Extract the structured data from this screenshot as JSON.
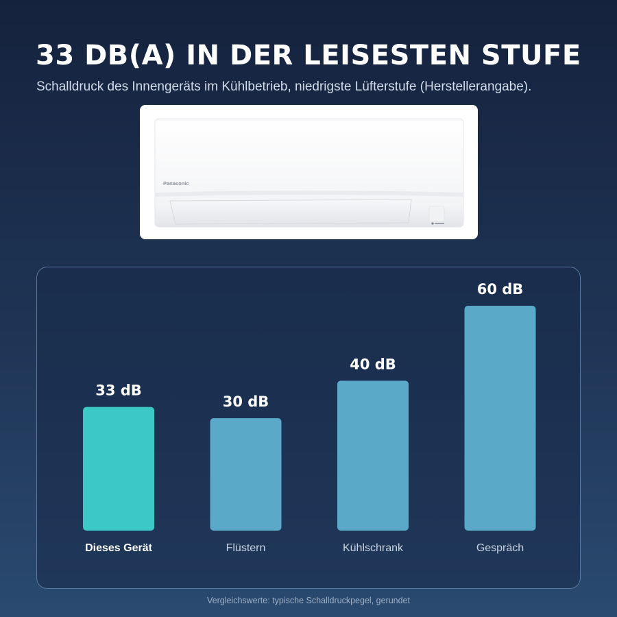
{
  "header": {
    "title": "33 DB(A) IN DER LEISESTEN STUFE",
    "subtitle": "Schalldruck des Innengeräts im Kühlbetrieb, niedrigste Lüfterstufe (Herstellerangabe)."
  },
  "product": {
    "brand_label": "Panasonic"
  },
  "chart_data": {
    "type": "bar",
    "categories": [
      "Dieses Gerät",
      "Flüstern",
      "Kühlschrank",
      "Gespräch"
    ],
    "values": [
      33,
      30,
      40,
      60
    ],
    "value_labels": [
      "33 dB",
      "30 dB",
      "40 dB",
      "60 dB"
    ],
    "highlight_index": 0,
    "colors": {
      "highlight": "#3cc8c4",
      "default": "#5aa9c9"
    },
    "ylim": [
      0,
      60
    ],
    "grid": false,
    "legend": "none"
  },
  "footer": {
    "note": "Vergleichswerte: typische Schalldruckpegel, gerundet"
  }
}
